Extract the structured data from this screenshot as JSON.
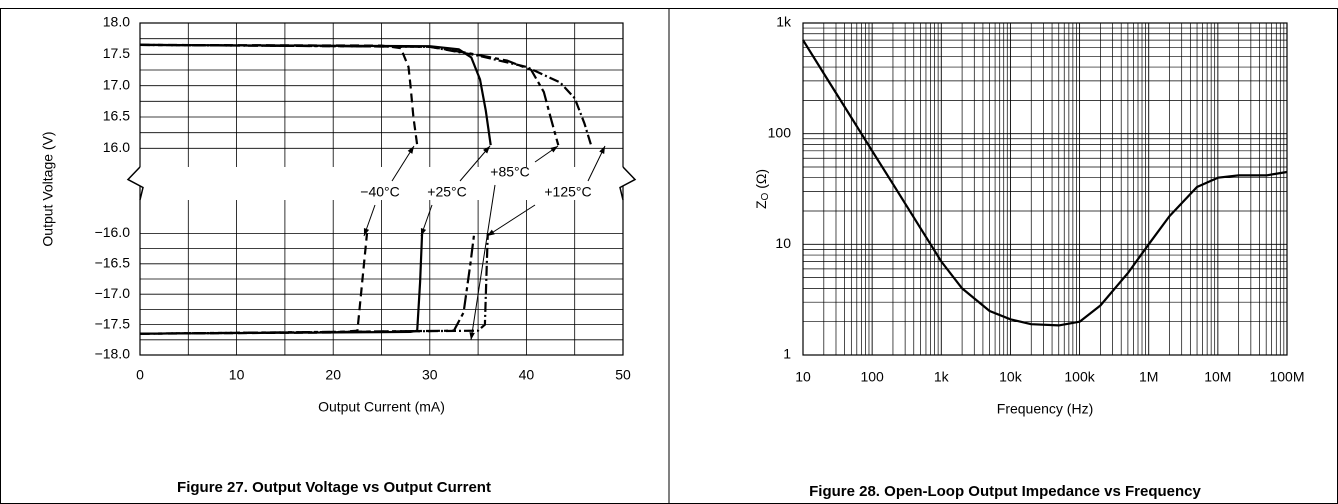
{
  "chart_data": [
    {
      "type": "line",
      "title": "Figure 27. Output Voltage vs Output Current",
      "xlabel": "Output Current (mA)",
      "ylabel": "Output Voltage (V)",
      "xlim": [
        0,
        50
      ],
      "xticks": [
        0,
        10,
        20,
        30,
        40,
        50
      ],
      "ylim": [
        -18.0,
        18.0
      ],
      "ybreak": [
        -15.5,
        15.75
      ],
      "yticks": [
        {
          "value": 18.0,
          "label": "18.0"
        },
        {
          "value": 17.5,
          "label": "17.5"
        },
        {
          "value": 17.0,
          "label": "17.0"
        },
        {
          "value": 16.5,
          "label": "16.5"
        },
        {
          "value": 16.0,
          "label": "16.0"
        },
        {
          "value": -16.0,
          "label": "−16.0"
        },
        {
          "value": -16.5,
          "label": "−16.5"
        },
        {
          "value": -17.0,
          "label": "−17.0"
        },
        {
          "value": -17.5,
          "label": "−17.5"
        },
        {
          "value": -18.0,
          "label": "−18.0"
        }
      ],
      "grid": true,
      "series": [
        {
          "name": "−40°C",
          "color": "#000000",
          "style": "dashed",
          "x": [
            0,
            25,
            27,
            27.8,
            28,
            28.3,
            28.7,
            null,
            0,
            20,
            22.5,
            23,
            23.5
          ],
          "values": [
            17.65,
            17.64,
            17.6,
            17.3,
            17.0,
            16.5,
            16.05,
            null,
            -17.65,
            -17.63,
            -17.6,
            -16.8,
            -16.0
          ]
        },
        {
          "name": "+25°C",
          "color": "#000000",
          "style": "solid",
          "x": [
            0,
            30,
            33,
            34.3,
            35.2,
            35.8,
            36.3,
            null,
            0,
            28,
            28.7,
            29,
            29.2
          ],
          "values": [
            17.65,
            17.63,
            17.58,
            17.45,
            17.1,
            16.6,
            16.05,
            null,
            -17.65,
            -17.62,
            -17.6,
            -16.8,
            -16.0
          ]
        },
        {
          "name": "+85°C",
          "color": "#000000",
          "style": "longshort",
          "x": [
            0,
            30,
            34,
            38,
            40.5,
            41.8,
            42.5,
            43.3,
            null,
            0,
            32.5,
            33.5,
            34.2,
            34.6
          ],
          "values": [
            17.65,
            17.62,
            17.52,
            17.4,
            17.25,
            16.9,
            16.5,
            16.05,
            null,
            -17.65,
            -17.6,
            -17.3,
            -16.5,
            -16.0
          ]
        },
        {
          "name": "+125°C",
          "color": "#000000",
          "style": "dashdot",
          "x": [
            0,
            30,
            35,
            40,
            43.5,
            45,
            46,
            46.7,
            null,
            0,
            35,
            35.7,
            35.9,
            36
          ],
          "values": [
            17.65,
            17.62,
            17.48,
            17.3,
            17.05,
            16.8,
            16.4,
            16.05,
            null,
            -17.65,
            -17.6,
            -17.5,
            -16.5,
            -16.0
          ]
        }
      ]
    },
    {
      "type": "line",
      "title": "Figure 28.  Open-Loop Output Impedance vs Frequency",
      "xlabel": "Frequency (Hz)",
      "ylabel": [
        "Z",
        "O",
        " (Ω)"
      ],
      "log_x": true,
      "log_y": true,
      "grid": true,
      "xlim": [
        10,
        100000000
      ],
      "xticks": [
        10,
        100,
        {
          "value": 1000,
          "label": "1k"
        },
        {
          "value": 10000,
          "label": "10k"
        },
        {
          "value": 100000,
          "label": "100k"
        },
        {
          "value": 1000000,
          "label": "1M"
        },
        {
          "value": 10000000,
          "label": "10M"
        },
        {
          "value": 100000000,
          "label": "100M"
        }
      ],
      "ylim": [
        1,
        1000
      ],
      "yticks": [
        1,
        10,
        100,
        {
          "value": 1000,
          "label": "1k"
        }
      ],
      "series": [
        {
          "color": "#000000",
          "x": [
            10,
            20,
            50,
            100,
            200,
            500,
            1000,
            2000,
            5000,
            10000,
            20000,
            50000,
            100000,
            200000,
            500000,
            1000000,
            2000000,
            5000000,
            10000000,
            20000000,
            50000000,
            100000000
          ],
          "values": [
            700,
            350,
            140,
            70,
            35,
            14,
            7,
            4.0,
            2.5,
            2.1,
            1.9,
            1.85,
            2.0,
            2.8,
            5.5,
            10,
            18,
            33,
            40,
            42,
            42,
            45
          ]
        }
      ]
    }
  ]
}
